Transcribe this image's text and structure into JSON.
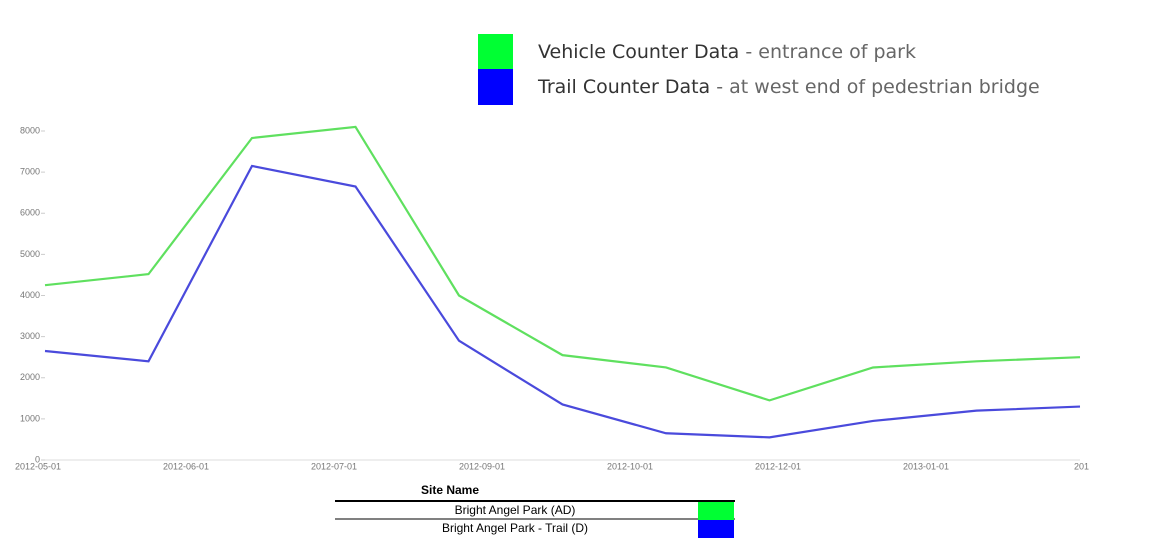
{
  "chart_data": {
    "type": "line",
    "legend": [
      {
        "name": "Vehicle Counter Data",
        "description": "- entrance of park",
        "color": "#00ff33"
      },
      {
        "name": "Trail Counter Data",
        "description": "- at west end of pedestrian bridge",
        "color": "#0000ff"
      }
    ],
    "categories": [
      null,
      null,
      null,
      null,
      null,
      null,
      null,
      null,
      null,
      null,
      null
    ],
    "xtick_labels": [
      "2012-05-01",
      "2012-06-01",
      "2012-07-01",
      "2012-09-01",
      "2012-10-01",
      "2012-12-01",
      "2013-01-01",
      "201"
    ],
    "series": [
      {
        "color": "#5fe05f",
        "values": [
          4250,
          4520,
          7830,
          8100,
          4000,
          2550,
          2250,
          1450,
          2250,
          2400,
          2500
        ]
      },
      {
        "color": "#4a4adc",
        "values": [
          2650,
          2400,
          7150,
          6650,
          2900,
          1350,
          650,
          550,
          950,
          1200,
          1300
        ]
      }
    ],
    "ylim": [
      0,
      8000
    ],
    "yticks": [
      0,
      1000,
      2000,
      3000,
      4000,
      5000,
      6000,
      7000,
      8000
    ],
    "table": {
      "header": "Site Name",
      "rows": [
        {
          "name": "Bright Angel Park  (AD)",
          "color": "#00ff33"
        },
        {
          "name": "Bright Angel Park - Trail  (D)",
          "color": "#0000ff"
        }
      ]
    }
  }
}
